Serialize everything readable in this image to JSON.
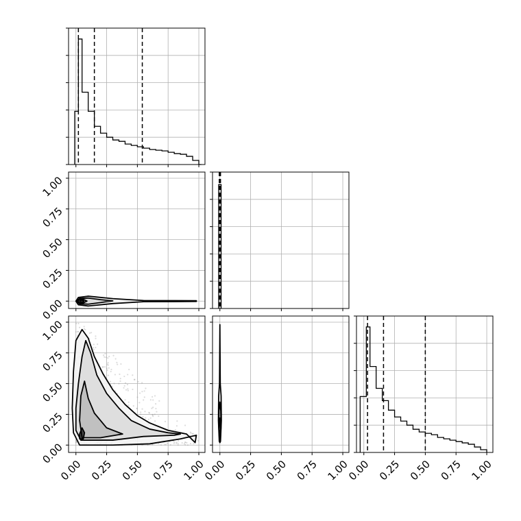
{
  "chart_data": {
    "type": "corner",
    "tick_labels": [
      "0.00",
      "0.25",
      "0.50",
      "0.75",
      "1.00"
    ],
    "ticks": [
      0,
      0.25,
      0.5,
      0.75,
      1.0
    ],
    "xlim": [
      -0.06,
      1.05
    ],
    "ylim": [
      -0.06,
      1.05
    ],
    "grid": true,
    "panels": [
      {
        "id": "hist-1",
        "type": "histogram",
        "row": 0,
        "col": 0,
        "xlim": [
          -0.06,
          1.05
        ],
        "ylim": [
          0,
          1.0
        ],
        "bins": [
          [
            -0.01,
            0.02,
            0.39
          ],
          [
            0.02,
            0.05,
            0.92
          ],
          [
            0.05,
            0.1,
            0.53
          ],
          [
            0.1,
            0.15,
            0.39
          ],
          [
            0.15,
            0.2,
            0.28
          ],
          [
            0.2,
            0.25,
            0.23
          ],
          [
            0.25,
            0.3,
            0.2
          ],
          [
            0.3,
            0.35,
            0.18
          ],
          [
            0.35,
            0.4,
            0.17
          ],
          [
            0.4,
            0.45,
            0.15
          ],
          [
            0.45,
            0.5,
            0.14
          ],
          [
            0.5,
            0.55,
            0.13
          ],
          [
            0.55,
            0.6,
            0.12
          ],
          [
            0.6,
            0.65,
            0.11
          ],
          [
            0.65,
            0.7,
            0.105
          ],
          [
            0.7,
            0.75,
            0.1
          ],
          [
            0.75,
            0.8,
            0.09
          ],
          [
            0.8,
            0.85,
            0.08
          ],
          [
            0.85,
            0.9,
            0.075
          ],
          [
            0.9,
            0.95,
            0.06
          ],
          [
            0.95,
            1.0,
            0.03
          ],
          [
            1.0,
            1.02,
            0.0
          ]
        ],
        "quantile_lines": [
          0.02,
          0.15,
          0.54
        ],
        "tick_labels_shown": false
      },
      {
        "id": "hist-2",
        "type": "histogram",
        "row": 1,
        "col": 1,
        "xlim": [
          -0.06,
          1.05
        ],
        "ylim": [
          0,
          1.1
        ],
        "bins": [
          [
            -0.01,
            0.0,
            1.0
          ],
          [
            0.0,
            0.01,
            1.0
          ]
        ],
        "quantile_lines": [
          -0.005,
          0.0,
          0.005
        ],
        "tick_labels_shown": false
      },
      {
        "id": "hist-3",
        "type": "histogram",
        "row": 2,
        "col": 2,
        "xlim": [
          -0.06,
          1.05
        ],
        "ylim": [
          0,
          1.0
        ],
        "bins": [
          [
            -0.03,
            0.02,
            0.41
          ],
          [
            0.02,
            0.05,
            0.92
          ],
          [
            0.05,
            0.1,
            0.63
          ],
          [
            0.1,
            0.15,
            0.47
          ],
          [
            0.15,
            0.2,
            0.38
          ],
          [
            0.2,
            0.25,
            0.31
          ],
          [
            0.25,
            0.3,
            0.26
          ],
          [
            0.3,
            0.35,
            0.23
          ],
          [
            0.35,
            0.4,
            0.2
          ],
          [
            0.4,
            0.45,
            0.17
          ],
          [
            0.45,
            0.5,
            0.15
          ],
          [
            0.5,
            0.55,
            0.14
          ],
          [
            0.55,
            0.6,
            0.13
          ],
          [
            0.6,
            0.65,
            0.11
          ],
          [
            0.65,
            0.7,
            0.1
          ],
          [
            0.7,
            0.75,
            0.09
          ],
          [
            0.75,
            0.8,
            0.08
          ],
          [
            0.8,
            0.85,
            0.07
          ],
          [
            0.85,
            0.9,
            0.06
          ],
          [
            0.9,
            0.95,
            0.04
          ],
          [
            0.95,
            1.0,
            0.02
          ]
        ],
        "quantile_lines": [
          0.03,
          0.16,
          0.5
        ],
        "tick_labels_shown": false
      },
      {
        "id": "contour-2-1",
        "type": "contour",
        "row": 1,
        "col": 0,
        "xlim": [
          -0.06,
          1.05
        ],
        "ylim": [
          -0.06,
          1.05
        ],
        "contours": [
          [
            [
              0.0,
              0.0
            ],
            [
              0.02,
              0.03
            ],
            [
              0.1,
              0.04
            ],
            [
              0.3,
              0.02
            ],
            [
              0.55,
              0.005
            ],
            [
              0.98,
              0.003
            ],
            [
              0.98,
              -0.003
            ],
            [
              0.55,
              -0.005
            ],
            [
              0.3,
              -0.02
            ],
            [
              0.1,
              -0.04
            ],
            [
              0.02,
              -0.03
            ]
          ],
          [
            [
              0.0,
              0.0
            ],
            [
              0.03,
              0.022
            ],
            [
              0.1,
              0.025
            ],
            [
              0.2,
              0.012
            ],
            [
              0.3,
              0.002
            ],
            [
              0.2,
              -0.012
            ],
            [
              0.1,
              -0.025
            ],
            [
              0.03,
              -0.022
            ]
          ],
          [
            [
              0.015,
              0.0
            ],
            [
              0.03,
              0.015
            ],
            [
              0.06,
              0.014
            ],
            [
              0.09,
              0.0
            ],
            [
              0.06,
              -0.014
            ],
            [
              0.03,
              -0.015
            ]
          ],
          [
            [
              0.03,
              0.0
            ],
            [
              0.04,
              0.008
            ],
            [
              0.06,
              0.006
            ],
            [
              0.065,
              0.0
            ],
            [
              0.06,
              -0.006
            ],
            [
              0.04,
              -0.008
            ]
          ]
        ]
      },
      {
        "id": "contour-3-1",
        "type": "contour",
        "row": 2,
        "col": 0,
        "xlim": [
          -0.06,
          1.05
        ],
        "ylim": [
          -0.06,
          1.05
        ],
        "contours": [
          [
            [
              0.03,
              0.0
            ],
            [
              0.3,
              0.0
            ],
            [
              0.6,
              0.01
            ],
            [
              0.85,
              0.05
            ],
            [
              0.98,
              0.08
            ],
            [
              0.97,
              0.02
            ],
            [
              0.9,
              0.09
            ],
            [
              0.85,
              0.1
            ],
            [
              0.75,
              0.12
            ],
            [
              0.6,
              0.18
            ],
            [
              0.5,
              0.24
            ],
            [
              0.4,
              0.33
            ],
            [
              0.3,
              0.45
            ],
            [
              0.22,
              0.58
            ],
            [
              0.15,
              0.72
            ],
            [
              0.1,
              0.87
            ],
            [
              0.05,
              0.94
            ],
            [
              0.0,
              0.85
            ],
            [
              -0.02,
              0.6
            ],
            [
              -0.03,
              0.3
            ],
            [
              -0.02,
              0.1
            ]
          ],
          [
            [
              0.04,
              0.04
            ],
            [
              0.3,
              0.04
            ],
            [
              0.55,
              0.07
            ],
            [
              0.8,
              0.08
            ],
            [
              0.85,
              0.09
            ],
            [
              0.75,
              0.1
            ],
            [
              0.6,
              0.13
            ],
            [
              0.45,
              0.2
            ],
            [
              0.35,
              0.3
            ],
            [
              0.25,
              0.42
            ],
            [
              0.17,
              0.57
            ],
            [
              0.12,
              0.75
            ],
            [
              0.08,
              0.85
            ],
            [
              0.05,
              0.72
            ],
            [
              0.02,
              0.5
            ],
            [
              0.0,
              0.3
            ],
            [
              0.0,
              0.12
            ]
          ],
          [
            [
              0.05,
              0.06
            ],
            [
              0.2,
              0.06
            ],
            [
              0.38,
              0.09
            ],
            [
              0.25,
              0.14
            ],
            [
              0.15,
              0.26
            ],
            [
              0.1,
              0.38
            ],
            [
              0.07,
              0.52
            ],
            [
              0.04,
              0.4
            ],
            [
              0.03,
              0.2
            ]
          ],
          [
            [
              0.03,
              0.05
            ],
            [
              0.06,
              0.05
            ],
            [
              0.07,
              0.1
            ],
            [
              0.05,
              0.14
            ],
            [
              0.03,
              0.09
            ]
          ]
        ],
        "scatter_note": "grey scatter points outside outer contour"
      },
      {
        "id": "contour-3-2",
        "type": "contour",
        "row": 2,
        "col": 1,
        "xlim": [
          -0.06,
          1.05
        ],
        "ylim": [
          -0.06,
          1.05
        ],
        "contours": [
          [
            [
              -0.005,
              0.03
            ],
            [
              -0.012,
              0.2
            ],
            [
              -0.01,
              0.4
            ],
            [
              -0.003,
              0.5
            ],
            [
              0.0,
              0.98
            ],
            [
              0.003,
              0.5
            ],
            [
              0.01,
              0.4
            ],
            [
              0.012,
              0.2
            ],
            [
              0.005,
              0.03
            ],
            [
              0.0,
              0.02
            ]
          ],
          [
            [
              -0.004,
              0.05
            ],
            [
              -0.009,
              0.15
            ],
            [
              -0.007,
              0.28
            ],
            [
              0.0,
              0.35
            ],
            [
              0.007,
              0.28
            ],
            [
              0.009,
              0.15
            ],
            [
              0.004,
              0.05
            ]
          ],
          [
            [
              -0.003,
              0.06
            ],
            [
              -0.006,
              0.12
            ],
            [
              -0.004,
              0.2
            ],
            [
              0.0,
              0.22
            ],
            [
              0.004,
              0.2
            ],
            [
              0.006,
              0.12
            ],
            [
              0.003,
              0.06
            ]
          ],
          [
            [
              -0.002,
              0.07
            ],
            [
              -0.003,
              0.1
            ],
            [
              0.0,
              0.12
            ],
            [
              0.003,
              0.1
            ],
            [
              0.002,
              0.07
            ]
          ]
        ]
      }
    ]
  }
}
